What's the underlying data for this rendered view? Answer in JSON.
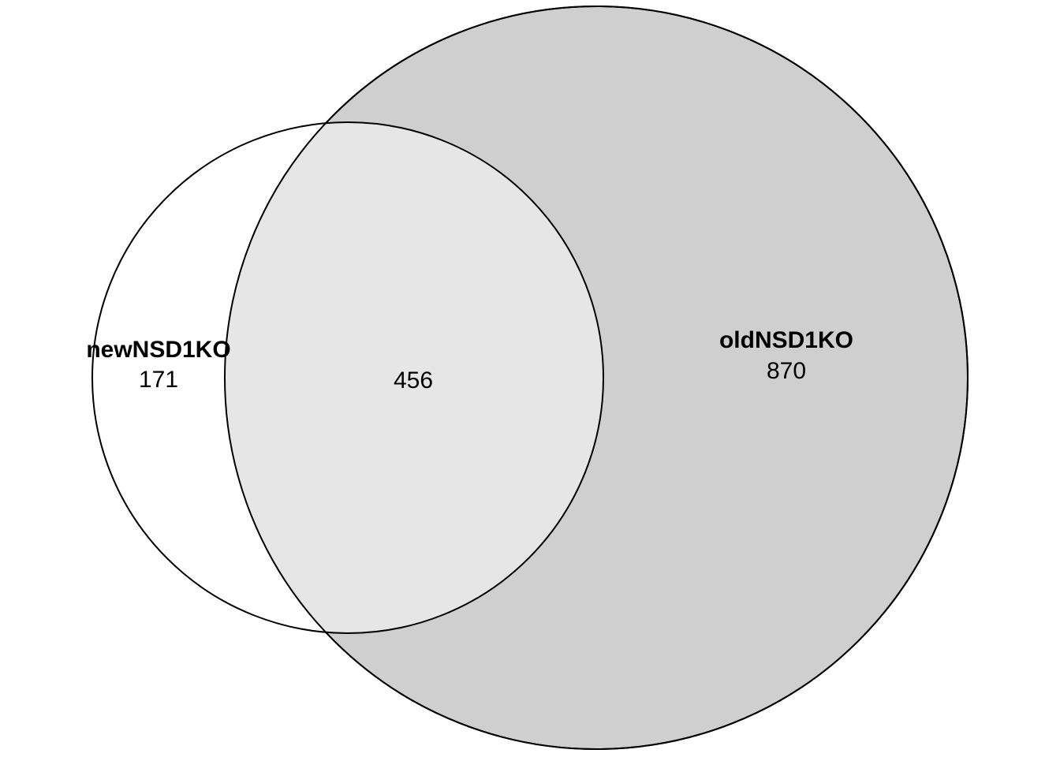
{
  "sets": [
    {
      "name": "newNSD1KO",
      "only_count": "171",
      "fill_color": "#ffffff"
    },
    {
      "name": "oldNSD1KO",
      "only_count": "870",
      "fill_color": "#cfcfcf"
    }
  ],
  "intersection": {
    "count": "456",
    "fill_color": "#e6e6e6"
  },
  "stroke_color": "#000000",
  "chart_data": {
    "type": "venn",
    "sets": [
      {
        "name": "newNSD1KO",
        "only": 171
      },
      {
        "name": "oldNSD1KO",
        "only": 870
      }
    ],
    "overlap": 456
  }
}
